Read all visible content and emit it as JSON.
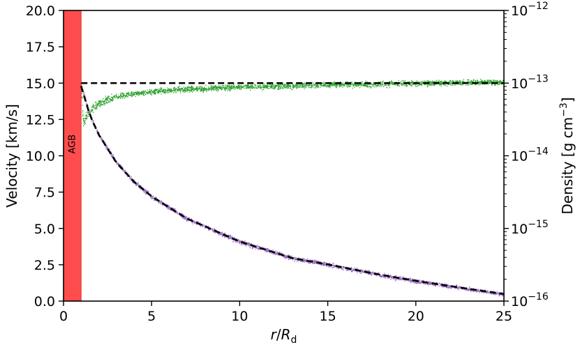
{
  "chart_data": {
    "type": "scatter",
    "title": "",
    "xlabel": "r/R_d",
    "ylabel_left": "Velocity [km/s]",
    "ylabel_right": "Density [g cm^-3]",
    "xlim": [
      0,
      25
    ],
    "ylim_left": [
      0,
      20
    ],
    "ylim_right": [
      1e-16,
      1e-12
    ],
    "right_axis_scale": "log",
    "grid": false,
    "x_ticks": [
      "0",
      "5",
      "10",
      "15",
      "20",
      "25"
    ],
    "y_ticks_left": [
      "0.0",
      "2.5",
      "5.0",
      "7.5",
      "10.0",
      "12.5",
      "15.0",
      "17.5",
      "20.0"
    ],
    "y_ticks_right": [
      {
        "base": "10",
        "exp": "−16"
      },
      {
        "base": "10",
        "exp": "−15"
      },
      {
        "base": "10",
        "exp": "−14"
      },
      {
        "base": "10",
        "exp": "−13"
      },
      {
        "base": "10",
        "exp": "−12"
      }
    ],
    "agb_region": {
      "label": "AGB",
      "x_range": [
        0,
        1
      ],
      "color": "#ff4d4d"
    },
    "series": [
      {
        "axis": "left",
        "color": "#2ca02c",
        "style": "scatter",
        "x": [
          1.0,
          1.1,
          1.3,
          1.6,
          2.0,
          2.5,
          3.0,
          4.0,
          5.0,
          6.0,
          8.0,
          10.0,
          15.0,
          20.0,
          25.0
        ],
        "y": [
          14.5,
          12.2,
          12.8,
          13.3,
          13.6,
          13.9,
          14.1,
          14.3,
          14.45,
          14.55,
          14.65,
          14.75,
          14.9,
          15.0,
          15.1
        ]
      },
      {
        "axis": "left",
        "color": "#000000",
        "style": "dashed",
        "x": [
          1.0,
          25.0
        ],
        "y": [
          15.0,
          15.0
        ]
      },
      {
        "axis": "right",
        "color": "#9467bd",
        "style": "scatter",
        "x": [
          1.0,
          1.5,
          2.0,
          3.0,
          4.0,
          5.0,
          7.0,
          10.0,
          13.0,
          15.0,
          18.0,
          20.0,
          22.0,
          25.0
        ],
        "y": [
          9.1e-14,
          3.6e-14,
          1.95e-14,
          8.1e-15,
          4.4e-15,
          2.76e-15,
          1.37e-15,
          6.6e-16,
          3.9e-16,
          3.2e-16,
          2.3e-16,
          1.9e-16,
          1.6e-16,
          1.25e-16
        ]
      },
      {
        "axis": "right",
        "color": "#000000",
        "style": "dashed",
        "x": [
          1.0,
          1.5,
          2.0,
          3.0,
          4.0,
          5.0,
          7.0,
          10.0,
          13.0,
          15.0,
          18.0,
          20.0,
          22.0,
          25.0
        ],
        "y": [
          9.1e-14,
          3.6e-14,
          1.95e-14,
          8.1e-15,
          4.4e-15,
          2.76e-15,
          1.37e-15,
          6.6e-16,
          3.9e-16,
          3.2e-16,
          2.3e-16,
          1.9e-16,
          1.6e-16,
          1.25e-16
        ]
      }
    ]
  }
}
